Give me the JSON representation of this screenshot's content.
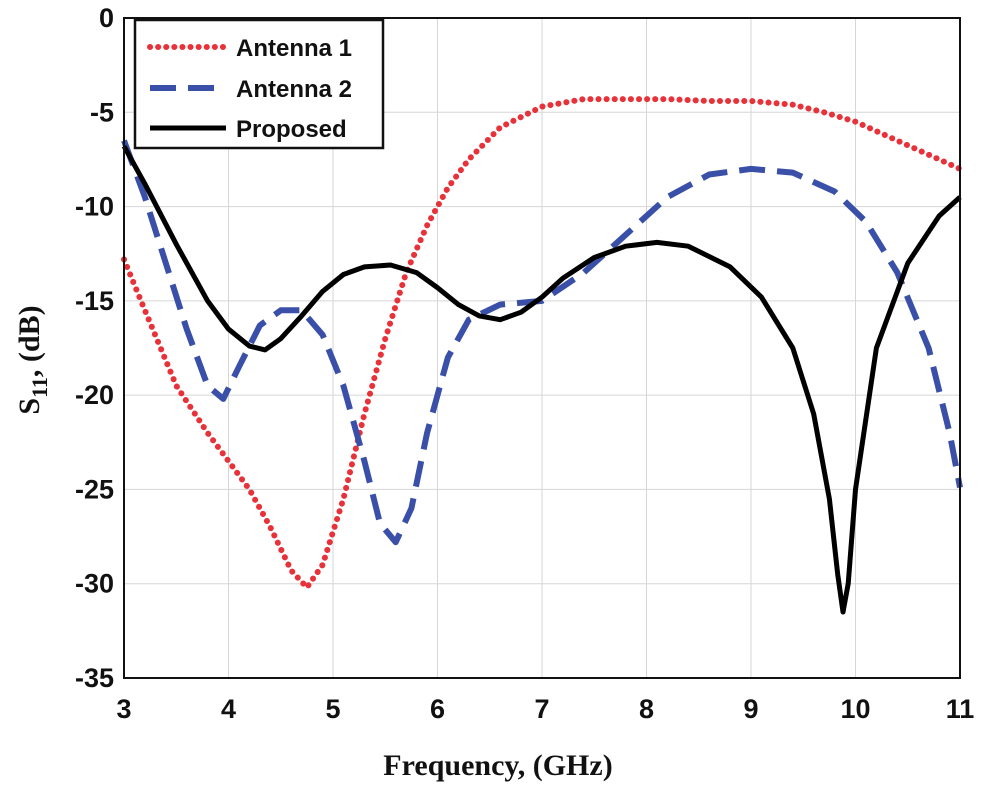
{
  "chart_data": {
    "type": "line",
    "title": "",
    "xlabel": "Frequency, (GHz)",
    "ylabel_main": "S",
    "ylabel_sub": "11",
    "ylabel_rest": ", (dB)",
    "xlim": [
      3,
      11
    ],
    "ylim": [
      -35,
      0
    ],
    "xticks": [
      3,
      4,
      5,
      6,
      7,
      8,
      9,
      10,
      11
    ],
    "yticks": [
      0,
      -5,
      -10,
      -15,
      -20,
      -25,
      -30,
      -35
    ],
    "grid": true,
    "legend_position": "top-left",
    "series": [
      {
        "name": "Antenna 1",
        "color": "#e8323a",
        "style": "dotted",
        "x": [
          3,
          3.2,
          3.5,
          3.8,
          4.0,
          4.2,
          4.4,
          4.6,
          4.75,
          4.9,
          5.1,
          5.3,
          5.5,
          5.7,
          5.9,
          6.1,
          6.3,
          6.6,
          7.0,
          7.4,
          7.8,
          8.2,
          8.6,
          9.0,
          9.4,
          9.7,
          10.0,
          10.4,
          10.8,
          11
        ],
        "y": [
          -12.8,
          -15.5,
          -19.5,
          -22.0,
          -23.5,
          -25.0,
          -27.0,
          -29.3,
          -30.2,
          -29.0,
          -25.5,
          -21.0,
          -17.0,
          -13.5,
          -11.0,
          -9.0,
          -7.5,
          -5.8,
          -4.7,
          -4.3,
          -4.3,
          -4.3,
          -4.4,
          -4.4,
          -4.6,
          -5.0,
          -5.5,
          -6.5,
          -7.5,
          -8.0
        ]
      },
      {
        "name": "Antenna 2",
        "color": "#3a50a8",
        "style": "dashed",
        "x": [
          3,
          3.2,
          3.4,
          3.6,
          3.8,
          3.95,
          4.1,
          4.3,
          4.5,
          4.7,
          4.9,
          5.1,
          5.3,
          5.45,
          5.6,
          5.75,
          5.9,
          6.1,
          6.3,
          6.6,
          7.0,
          7.4,
          7.8,
          8.2,
          8.6,
          9.0,
          9.4,
          9.8,
          10.1,
          10.4,
          10.7,
          10.9,
          11
        ],
        "y": [
          -6.5,
          -9.5,
          -13.0,
          -16.5,
          -19.5,
          -20.2,
          -18.5,
          -16.3,
          -15.5,
          -15.5,
          -16.8,
          -19.5,
          -23.5,
          -26.8,
          -27.8,
          -26.0,
          -22.0,
          -18.0,
          -16.0,
          -15.2,
          -15.0,
          -13.5,
          -11.5,
          -9.5,
          -8.3,
          -8.0,
          -8.2,
          -9.2,
          -10.8,
          -13.5,
          -17.5,
          -22.0,
          -24.9
        ]
      },
      {
        "name": "Proposed",
        "color": "#000000",
        "style": "solid",
        "x": [
          3,
          3.2,
          3.5,
          3.8,
          4.0,
          4.2,
          4.35,
          4.5,
          4.7,
          4.9,
          5.1,
          5.3,
          5.55,
          5.8,
          6.0,
          6.2,
          6.4,
          6.6,
          6.8,
          7.0,
          7.2,
          7.5,
          7.8,
          8.1,
          8.4,
          8.8,
          9.1,
          9.4,
          9.6,
          9.75,
          9.83,
          9.88,
          9.93,
          10.0,
          10.2,
          10.5,
          10.8,
          11
        ],
        "y": [
          -6.8,
          -8.8,
          -12.0,
          -15.0,
          -16.5,
          -17.4,
          -17.6,
          -17.0,
          -15.8,
          -14.5,
          -13.6,
          -13.2,
          -13.1,
          -13.5,
          -14.3,
          -15.2,
          -15.8,
          -16.0,
          -15.6,
          -14.8,
          -13.8,
          -12.7,
          -12.1,
          -11.9,
          -12.1,
          -13.2,
          -14.8,
          -17.5,
          -21.0,
          -25.5,
          -29.5,
          -31.5,
          -30.0,
          -25.0,
          -17.5,
          -13.0,
          -10.5,
          -9.5
        ]
      }
    ]
  }
}
